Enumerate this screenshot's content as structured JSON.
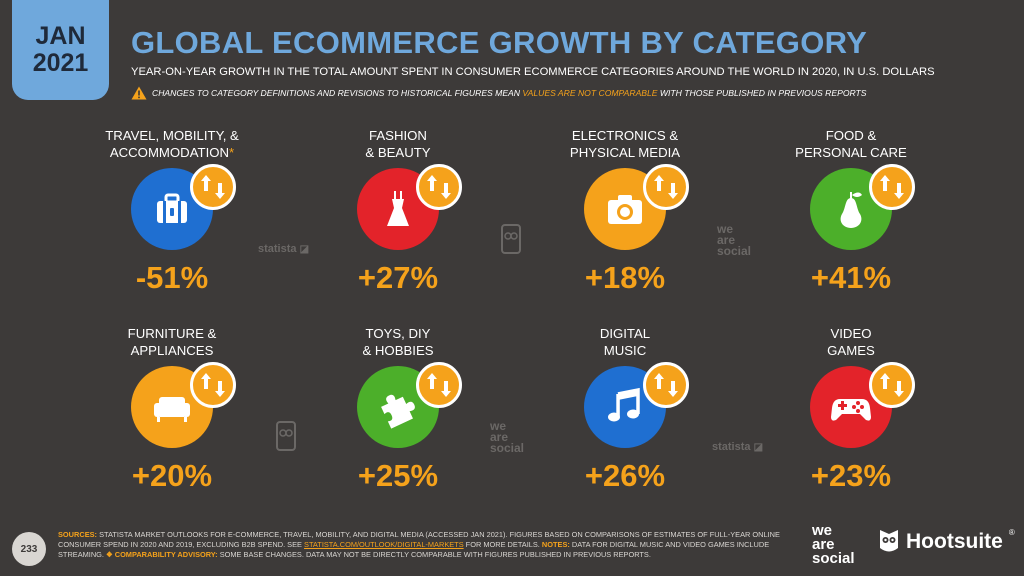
{
  "header": {
    "date_month": "JAN",
    "date_year": "2021",
    "title": "GLOBAL ECOMMERCE GROWTH BY CATEGORY",
    "subtitle": "YEAR-ON-YEAR GROWTH IN THE TOTAL AMOUNT SPENT IN CONSUMER ECOMMERCE CATEGORIES AROUND THE WORLD IN 2020, IN U.S. DOLLARS",
    "warning_pre": "CHANGES TO CATEGORY DEFINITIONS AND REVISIONS TO HISTORICAL FIGURES MEAN ",
    "warning_highlight": "VALUES ARE NOT COMPARABLE",
    "warning_post": " WITH THOSE PUBLISHED IN PREVIOUS REPORTS"
  },
  "categories": [
    {
      "label": "TRAVEL, MOBILITY, &\nACCOMMODATION",
      "asterisk": "*",
      "value": "-51%",
      "icon": "suitcase-icon",
      "color": "#1f6fd1"
    },
    {
      "label": "FASHION\n& BEAUTY",
      "asterisk": "",
      "value": "+27%",
      "icon": "dress-icon",
      "color": "#e3232a"
    },
    {
      "label": "ELECTRONICS &\nPHYSICAL MEDIA",
      "asterisk": "",
      "value": "+18%",
      "icon": "camera-icon",
      "color": "#f5a21b"
    },
    {
      "label": "FOOD &\nPERSONAL CARE",
      "asterisk": "",
      "value": "+41%",
      "icon": "pear-icon",
      "color": "#4caf2a"
    },
    {
      "label": "FURNITURE &\nAPPLIANCES",
      "asterisk": "",
      "value": "+20%",
      "icon": "sofa-icon",
      "color": "#f5a21b"
    },
    {
      "label": "TOYS, DIY\n& HOBBIES",
      "asterisk": "",
      "value": "+25%",
      "icon": "puzzle-piece-icon",
      "color": "#4caf2a"
    },
    {
      "label": "DIGITAL\nMUSIC",
      "asterisk": "",
      "value": "+26%",
      "icon": "music-note-icon",
      "color": "#1f6fd1"
    },
    {
      "label": "VIDEO\nGAMES",
      "asterisk": "",
      "value": "+23%",
      "icon": "gamepad-icon",
      "color": "#e3232a"
    }
  ],
  "watermarks": {
    "statista": "statista",
    "we": "we",
    "are": "are",
    "social": "social"
  },
  "footer": {
    "page_number": "233",
    "sources_key": "SOURCES:",
    "sources_text": " STATISTA MARKET OUTLOOKS FOR E-COMMERCE, TRAVEL, MOBILITY, AND DIGITAL MEDIA (ACCESSED JAN 2021). FIGURES BASED ON COMPARISONS OF ESTIMATES OF FULL-YEAR ONLINE CONSUMER SPEND IN 2020 AND 2019, EXCLUDING B2B SPEND. SEE ",
    "sources_url": "STATISTA.COM/OUTLOOK/DIGITAL-MARKETS",
    "sources_more": " FOR MORE DETAILS. ",
    "notes_key": "NOTES:",
    "notes_text": " DATA FOR DIGITAL MUSIC AND VIDEO GAMES INCLUDE STREAMING. ",
    "advisory_key": "❖ COMPARABILITY ADVISORY:",
    "advisory_text": " SOME BASE CHANGES. DATA MAY NOT BE DIRECTLY COMPARABLE WITH FIGURES PUBLISHED IN PREVIOUS REPORTS.",
    "logo_we": "we",
    "logo_are": "are",
    "logo_social": "social",
    "logo_hootsuite": "Hootsuite",
    "logo_reg": "®"
  },
  "colors": {
    "background": "#3d3a39",
    "accent_blue": "#6fa8dc",
    "accent_orange": "#f5a21b"
  }
}
